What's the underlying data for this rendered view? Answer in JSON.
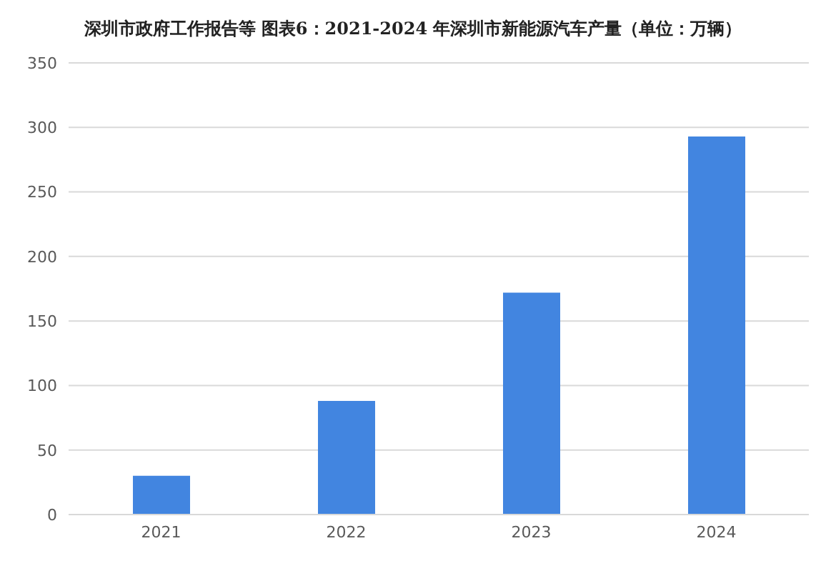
{
  "chart_data": {
    "type": "bar",
    "title": "深圳市政府工作报告等  图表6：2021-2024 年深圳市新能源汽车产量（单位：万辆）",
    "categories": [
      "2021",
      "2022",
      "2023",
      "2024"
    ],
    "values": [
      30,
      88,
      172,
      293
    ],
    "color": "#4285e0",
    "ylim": [
      0,
      350
    ],
    "yticks": [
      0,
      50,
      100,
      150,
      200,
      250,
      300,
      350
    ],
    "grid": "y",
    "legend": false
  }
}
